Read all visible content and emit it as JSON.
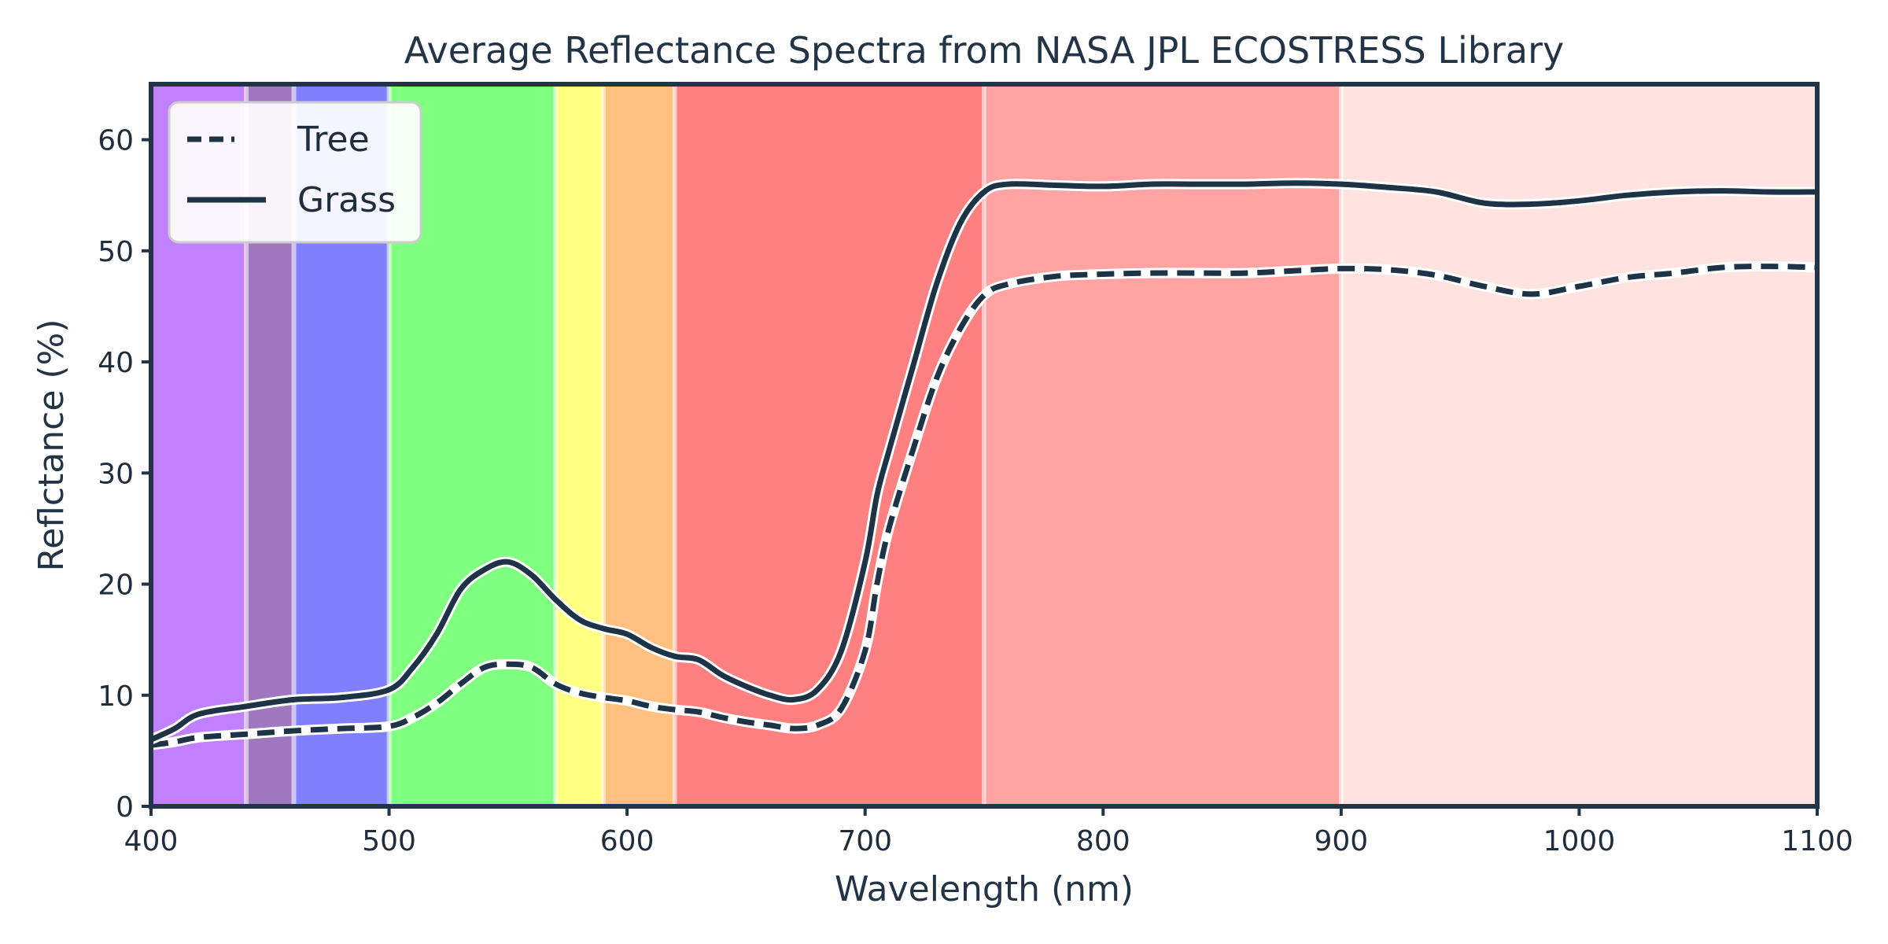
{
  "chart_data": {
    "type": "line",
    "title": "Average Reflectance Spectra from NASA JPL ECOSTRESS Library",
    "xlabel": "Wavelength (nm)",
    "ylabel": "Reflctance (%)",
    "xlim": [
      400,
      1100
    ],
    "ylim": [
      0,
      65
    ],
    "xticks": [
      400,
      500,
      600,
      700,
      800,
      900,
      1000,
      1100
    ],
    "yticks": [
      0,
      10,
      20,
      30,
      40,
      50,
      60
    ],
    "legend_position": "top-left",
    "grid": false,
    "bands": [
      {
        "from": 400,
        "to": 440,
        "color": "#c080ff"
      },
      {
        "from": 440,
        "to": 460,
        "color": "#a078c0"
      },
      {
        "from": 460,
        "to": 500,
        "color": "#8080ff"
      },
      {
        "from": 500,
        "to": 570,
        "color": "#80ff80"
      },
      {
        "from": 570,
        "to": 590,
        "color": "#ffff80"
      },
      {
        "from": 590,
        "to": 620,
        "color": "#ffc080"
      },
      {
        "from": 620,
        "to": 750,
        "color": "#ff8080"
      },
      {
        "from": 750,
        "to": 900,
        "color": "#ffa3a3"
      },
      {
        "from": 900,
        "to": 1100,
        "color": "#ffe3e0"
      }
    ],
    "series": [
      {
        "name": "Tree",
        "style": "dashed",
        "color": "#1f3347",
        "x": [
          400,
          410,
          420,
          440,
          460,
          480,
          500,
          510,
          520,
          530,
          540,
          550,
          560,
          570,
          580,
          590,
          600,
          610,
          620,
          630,
          640,
          650,
          660,
          670,
          680,
          690,
          700,
          705,
          710,
          720,
          730,
          740,
          750,
          760,
          780,
          800,
          820,
          840,
          860,
          880,
          900,
          920,
          940,
          960,
          980,
          1000,
          1020,
          1040,
          1060,
          1080,
          1100
        ],
        "y": [
          5.5,
          5.8,
          6.2,
          6.5,
          6.8,
          7.0,
          7.2,
          8.0,
          9.3,
          11.0,
          12.5,
          12.8,
          12.5,
          11.0,
          10.2,
          9.8,
          9.5,
          9.0,
          8.7,
          8.5,
          8.0,
          7.6,
          7.3,
          7.0,
          7.3,
          8.8,
          14.0,
          20.0,
          25.0,
          32.0,
          38.5,
          43.0,
          46.0,
          47.0,
          47.7,
          47.9,
          48.0,
          48.0,
          48.0,
          48.2,
          48.4,
          48.3,
          47.8,
          46.8,
          46.1,
          46.8,
          47.6,
          48.0,
          48.5,
          48.6,
          48.5
        ]
      },
      {
        "name": "Grass",
        "style": "solid",
        "color": "#1f3347",
        "x": [
          400,
          410,
          420,
          440,
          460,
          480,
          500,
          510,
          520,
          530,
          540,
          550,
          560,
          570,
          580,
          590,
          600,
          610,
          620,
          630,
          640,
          650,
          660,
          670,
          680,
          690,
          700,
          705,
          710,
          720,
          730,
          740,
          750,
          760,
          780,
          800,
          820,
          840,
          860,
          880,
          900,
          920,
          940,
          960,
          980,
          1000,
          1020,
          1040,
          1060,
          1080,
          1100
        ],
        "y": [
          6.0,
          7.0,
          8.3,
          9.0,
          9.6,
          9.8,
          10.5,
          12.5,
          15.5,
          19.5,
          21.3,
          22.0,
          20.8,
          18.6,
          16.8,
          16.0,
          15.5,
          14.3,
          13.5,
          13.2,
          11.8,
          10.8,
          10.0,
          9.6,
          10.5,
          14.0,
          22.0,
          28.0,
          32.0,
          39.5,
          47.0,
          52.5,
          55.3,
          56.0,
          55.9,
          55.8,
          56.0,
          56.0,
          56.0,
          56.1,
          56.0,
          55.7,
          55.3,
          54.3,
          54.2,
          54.5,
          55.0,
          55.3,
          55.4,
          55.3,
          55.3
        ]
      }
    ]
  }
}
